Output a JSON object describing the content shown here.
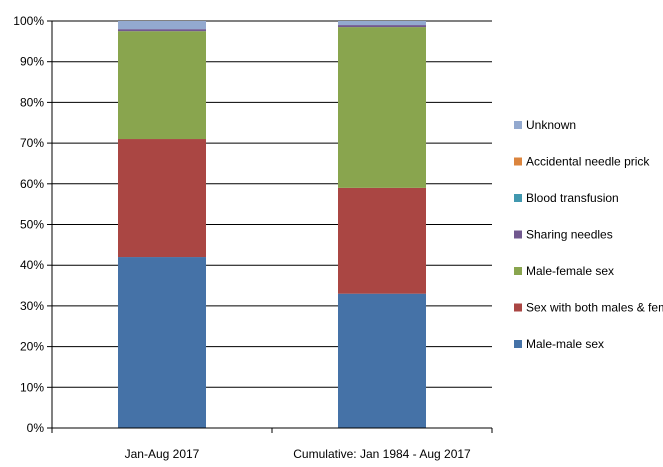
{
  "chart_data": {
    "type": "bar",
    "stacked": true,
    "percent_stacked": true,
    "categories": [
      "Jan-Aug 2017",
      "Cumulative: Jan 1984 - Aug 2017"
    ],
    "series": [
      {
        "name": "Male-male sex",
        "color": "#4572A7",
        "values": [
          42,
          33
        ]
      },
      {
        "name": "Sex with both males & females",
        "color": "#AA4643",
        "values": [
          29,
          26
        ]
      },
      {
        "name": "Male-female sex",
        "color": "#89A54E",
        "values": [
          26.5,
          39.5
        ]
      },
      {
        "name": "Sharing needles",
        "color": "#71588F",
        "values": [
          0.5,
          0.5
        ]
      },
      {
        "name": "Blood transfusion",
        "color": "#4198AF",
        "values": [
          0,
          0
        ]
      },
      {
        "name": "Accidental needle prick",
        "color": "#DB843D",
        "values": [
          0,
          0
        ]
      },
      {
        "name": "Unknown",
        "color": "#93A9CF",
        "values": [
          2,
          1
        ]
      }
    ],
    "legend_order": [
      "Unknown",
      "Accidental needle prick",
      "Blood transfusion",
      "Sharing needles",
      "Male-female sex",
      "Sex with both males & females",
      "Male-male sex"
    ],
    "y_ticks": [
      "0%",
      "10%",
      "20%",
      "30%",
      "40%",
      "50%",
      "60%",
      "70%",
      "80%",
      "90%",
      "100%"
    ],
    "ylim": [
      0,
      100
    ],
    "grid": true,
    "legend_position": "right",
    "title": "",
    "xlabel": "",
    "ylabel": ""
  }
}
